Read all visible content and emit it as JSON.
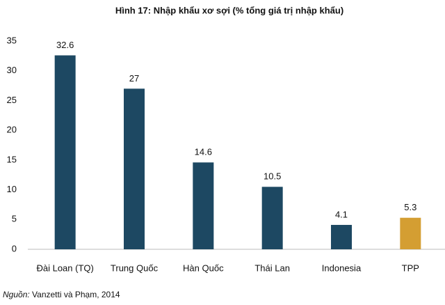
{
  "chart_data": {
    "type": "bar",
    "title": "Hình 17: Nhập khẩu xơ sợi (% tổng giá trị nhập khẩu)",
    "categories": [
      "Đài Loan (TQ)",
      "Trung Quốc",
      "Hàn Quốc",
      "Thái Lan",
      "Indonesia",
      "TPP"
    ],
    "values": [
      32.6,
      27,
      14.6,
      10.5,
      4.1,
      5.3
    ],
    "colors": [
      "#1d4862",
      "#1d4862",
      "#1d4862",
      "#1d4862",
      "#1d4862",
      "#d49e32"
    ],
    "ylim": [
      0,
      35
    ],
    "yticks": [
      0,
      5,
      10,
      15,
      20,
      25,
      30,
      35
    ],
    "grid": false,
    "source_label": "Nguồn:",
    "source": "Vanzetti và Phạm, 2014"
  }
}
